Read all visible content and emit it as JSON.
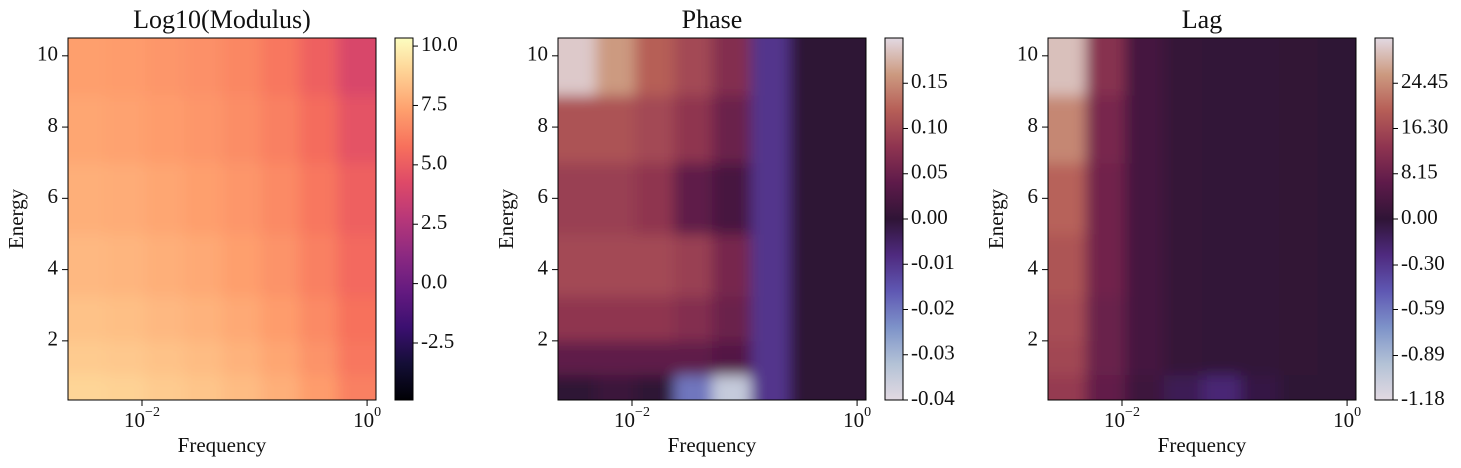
{
  "chart_data": [
    {
      "type": "heatmap",
      "title": "Log10(Modulus)",
      "xlabel": "Frequency",
      "ylabel": "Energy",
      "xscale": "log",
      "colormap": "magma",
      "norm": "linear",
      "x": [
        0.0032,
        0.0071,
        0.016,
        0.035,
        0.076,
        0.17,
        0.37,
        0.81
      ],
      "y": [
        0.6,
        1.5,
        2.5,
        4,
        6,
        8,
        9.8
      ],
      "z": [
        [
          9.0,
          8.9,
          8.7,
          8.5,
          8.2,
          7.8,
          7.2,
          6.3
        ],
        [
          8.7,
          8.6,
          8.4,
          8.2,
          7.9,
          7.5,
          6.9,
          6.0
        ],
        [
          8.4,
          8.3,
          8.1,
          7.9,
          7.6,
          7.2,
          6.6,
          5.8
        ],
        [
          8.1,
          8.0,
          7.8,
          7.6,
          7.3,
          6.9,
          6.3,
          5.5
        ],
        [
          7.8,
          7.7,
          7.5,
          7.3,
          7.0,
          6.6,
          6.0,
          5.2
        ],
        [
          7.5,
          7.4,
          7.2,
          7.0,
          6.7,
          6.3,
          5.6,
          4.6
        ],
        [
          7.3,
          7.2,
          7.0,
          6.8,
          6.5,
          6.0,
          5.2,
          4.0
        ]
      ],
      "xlim": [
        0.0022,
        1.2
      ],
      "ylim": [
        0.34,
        10.5
      ],
      "xticks": [
        {
          "value": 0.01,
          "label": "10−2"
        },
        {
          "value": 1,
          "label": "100"
        }
      ],
      "yticks": [
        2,
        4,
        6,
        8,
        10
      ],
      "clim": [
        -4.9,
        10.34
      ],
      "cticks": [
        -2.5,
        {
          "value": 0,
          "label": "0.0"
        },
        {
          "value": 2.5,
          "label": "2.5"
        },
        {
          "value": 5,
          "label": "5.0"
        },
        7.5,
        {
          "value": 10,
          "label": "10.0"
        }
      ]
    },
    {
      "type": "heatmap",
      "title": "Phase",
      "xlabel": "Frequency",
      "ylabel": "Energy",
      "xscale": "log",
      "colormap": "twilight",
      "norm": "twoslope",
      "x": [
        0.0032,
        0.0071,
        0.016,
        0.035,
        0.076,
        0.17,
        0.37,
        0.81
      ],
      "y": [
        0.6,
        1.5,
        2.5,
        4,
        6,
        8,
        9.8
      ],
      "z": [
        [
          0.0,
          0.01,
          0.0,
          -0.02,
          -0.035,
          -0.01,
          0.0,
          0.0
        ],
        [
          0.04,
          0.04,
          0.04,
          0.04,
          0.03,
          -0.01,
          0.0,
          0.0
        ],
        [
          0.08,
          0.08,
          0.08,
          0.07,
          0.05,
          -0.01,
          0.0,
          0.0
        ],
        [
          0.1,
          0.1,
          0.1,
          0.09,
          0.06,
          -0.01,
          0.0,
          0.0
        ],
        [
          0.09,
          0.09,
          0.08,
          0.04,
          0.02,
          -0.01,
          0.0,
          0.0
        ],
        [
          0.11,
          0.11,
          0.1,
          0.08,
          0.05,
          -0.01,
          0.0,
          0.0
        ],
        [
          0.19,
          0.16,
          0.12,
          0.1,
          0.07,
          -0.01,
          0.0,
          0.0
        ]
      ],
      "xlim": [
        0.0022,
        1.2
      ],
      "ylim": [
        0.34,
        10.5
      ],
      "xticks": [
        {
          "value": 0.01,
          "label": "10−2"
        },
        {
          "value": 1,
          "label": "100"
        }
      ],
      "yticks": [
        2,
        4,
        6,
        8,
        10
      ],
      "clim": [
        -0.04,
        0.2
      ],
      "cticks": [
        -0.04,
        -0.03,
        -0.02,
        -0.01,
        {
          "value": 0,
          "label": "0.00"
        },
        0.05,
        {
          "value": 0.1,
          "label": "0.10"
        },
        0.15
      ]
    },
    {
      "type": "heatmap",
      "title": "Lag",
      "xlabel": "Frequency",
      "ylabel": "Energy",
      "xscale": "log",
      "colormap": "twilight",
      "norm": "twoslope",
      "x": [
        0.0032,
        0.0071,
        0.016,
        0.035,
        0.076,
        0.17,
        0.37,
        0.81
      ],
      "y": [
        0.6,
        1.5,
        2.5,
        4,
        6,
        8,
        9.8
      ],
      "z": [
        [
          14,
          7,
          2,
          -0.1,
          -0.2,
          -0.05,
          0.0,
          0.0
        ],
        [
          16,
          8,
          3,
          1,
          0.5,
          0.2,
          0.1,
          0.0
        ],
        [
          17,
          8,
          3,
          1,
          0.5,
          0.2,
          0.1,
          0.0
        ],
        [
          18,
          9,
          3,
          1,
          0.5,
          0.2,
          0.1,
          0.0
        ],
        [
          20,
          9,
          3,
          1,
          0.5,
          0.2,
          0.1,
          0.0
        ],
        [
          24,
          10,
          3,
          1,
          0.5,
          0.2,
          0.1,
          0.0
        ],
        [
          30,
          12,
          3,
          1,
          0.5,
          0.2,
          0.1,
          0.0
        ]
      ],
      "xlim": [
        0.0022,
        1.2
      ],
      "ylim": [
        0.34,
        10.5
      ],
      "xticks": [
        {
          "value": 0.01,
          "label": "10−2"
        },
        {
          "value": 1,
          "label": "100"
        }
      ],
      "yticks": [
        2,
        4,
        6,
        8,
        10
      ],
      "clim": [
        -1.18,
        32.6
      ],
      "cticks": [
        -1.18,
        -0.89,
        -0.59,
        {
          "value": -0.3,
          "label": "-0.30"
        },
        {
          "value": 0,
          "label": "0.00"
        },
        8.15,
        {
          "value": 16.3,
          "label": "16.30"
        },
        24.45
      ]
    }
  ]
}
